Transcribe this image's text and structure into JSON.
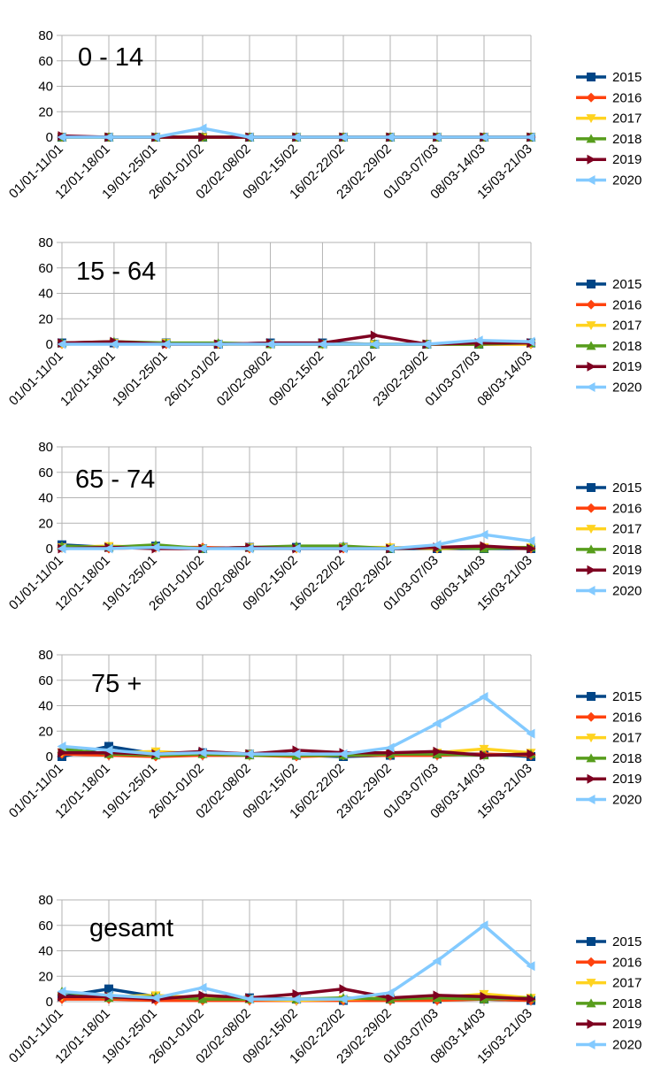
{
  "colors": {
    "2015": "#004586",
    "2016": "#ff420e",
    "2017": "#ffd320",
    "2018": "#579d1c",
    "2019": "#7e0021",
    "2020": "#83caff"
  },
  "chart_data": [
    {
      "type": "line",
      "title": "0 - 14",
      "ylim": [
        0,
        80
      ],
      "yticks": [
        0,
        20,
        40,
        60,
        80
      ],
      "grid": true,
      "legend_position": "right",
      "categories": [
        "01/01-11/01",
        "12/01-18/01",
        "19/01-25/01",
        "26/01-01/02",
        "02/02-08/02",
        "09/02-15/02",
        "16/02-22/02",
        "23/02-29/02",
        "01/03-07/03",
        "08/03-14/03",
        "15/03-21/03"
      ],
      "series": [
        {
          "name": "2015",
          "marker": "square",
          "values": [
            0,
            0,
            0,
            0,
            0,
            0,
            0,
            0,
            0,
            0,
            0
          ]
        },
        {
          "name": "2016",
          "marker": "diamond",
          "values": [
            0,
            0,
            0,
            0,
            0,
            0,
            0,
            0,
            0,
            0,
            0
          ]
        },
        {
          "name": "2017",
          "marker": "triangle-down",
          "values": [
            0,
            0,
            0,
            0,
            0,
            0,
            0,
            0,
            0,
            0,
            0
          ]
        },
        {
          "name": "2018",
          "marker": "triangle-up",
          "values": [
            0,
            0,
            0,
            0,
            0,
            0,
            0,
            0,
            0,
            0,
            0
          ]
        },
        {
          "name": "2019",
          "marker": "triangle-right",
          "values": [
            1,
            0,
            0,
            0,
            0,
            0,
            0,
            0,
            0,
            0,
            0
          ]
        },
        {
          "name": "2020",
          "marker": "triangle-left",
          "values": [
            0,
            0,
            0,
            7,
            0,
            0,
            0,
            0,
            0,
            0,
            0
          ]
        }
      ]
    },
    {
      "type": "line",
      "title": "15 - 64",
      "ylim": [
        0,
        80
      ],
      "yticks": [
        0,
        20,
        40,
        60,
        80
      ],
      "grid": true,
      "legend_position": "right",
      "categories": [
        "01/01-11/01",
        "12/01-18/01",
        "19/01-25/01",
        "26/01-01/02",
        "02/02-08/02",
        "09/02-15/02",
        "16/02-22/02",
        "23/02-29/02",
        "01/03-07/03",
        "08/03-14/03"
      ],
      "series": [
        {
          "name": "2015",
          "marker": "square",
          "values": [
            1,
            1,
            1,
            0,
            1,
            1,
            0,
            0,
            0,
            1
          ]
        },
        {
          "name": "2016",
          "marker": "diamond",
          "values": [
            0,
            1,
            0,
            0,
            0,
            0,
            0,
            0,
            0,
            0
          ]
        },
        {
          "name": "2017",
          "marker": "triangle-down",
          "values": [
            0,
            1,
            1,
            0,
            0,
            0,
            0,
            0,
            0,
            0
          ]
        },
        {
          "name": "2018",
          "marker": "triangle-up",
          "values": [
            1,
            2,
            1,
            1,
            0,
            0,
            0,
            0,
            0,
            1
          ]
        },
        {
          "name": "2019",
          "marker": "triangle-right",
          "values": [
            1,
            2,
            0,
            0,
            1,
            1,
            7,
            0,
            1,
            1
          ]
        },
        {
          "name": "2020",
          "marker": "triangle-left",
          "values": [
            0,
            0,
            0,
            0,
            0,
            0,
            0,
            0,
            3,
            2
          ]
        }
      ]
    },
    {
      "type": "line",
      "title": "65 - 74",
      "ylim": [
        0,
        80
      ],
      "yticks": [
        0,
        20,
        40,
        60,
        80
      ],
      "grid": true,
      "legend_position": "right",
      "categories": [
        "01/01-11/01",
        "12/01-18/01",
        "19/01-25/01",
        "26/01-01/02",
        "02/02-08/02",
        "09/02-15/02",
        "16/02-22/02",
        "23/02-29/02",
        "01/03-07/03",
        "08/03-14/03",
        "15/03-21/03"
      ],
      "series": [
        {
          "name": "2015",
          "marker": "square",
          "values": [
            3,
            1,
            2,
            0,
            1,
            1,
            1,
            0,
            0,
            0,
            0
          ]
        },
        {
          "name": "2016",
          "marker": "diamond",
          "values": [
            1,
            0,
            1,
            1,
            0,
            0,
            0,
            1,
            0,
            1,
            0
          ]
        },
        {
          "name": "2017",
          "marker": "triangle-down",
          "values": [
            1,
            2,
            1,
            0,
            1,
            0,
            1,
            1,
            0,
            1,
            1
          ]
        },
        {
          "name": "2018",
          "marker": "triangle-up",
          "values": [
            2,
            1,
            3,
            0,
            1,
            2,
            2,
            0,
            1,
            0,
            1
          ]
        },
        {
          "name": "2019",
          "marker": "triangle-right",
          "values": [
            0,
            1,
            0,
            0,
            1,
            0,
            0,
            0,
            1,
            2,
            0
          ]
        },
        {
          "name": "2020",
          "marker": "triangle-left",
          "values": [
            0,
            0,
            1,
            0,
            0,
            0,
            0,
            0,
            3,
            11,
            6
          ]
        }
      ]
    },
    {
      "type": "line",
      "title": "75 +",
      "ylim": [
        0,
        80
      ],
      "yticks": [
        0,
        20,
        40,
        60,
        80
      ],
      "grid": true,
      "legend_position": "right",
      "categories": [
        "01/01-11/01",
        "12/01-18/01",
        "19/01-25/01",
        "26/01-01/02",
        "02/02-08/02",
        "09/02-15/02",
        "16/02-22/02",
        "23/02-29/02",
        "01/03-07/03",
        "08/03-14/03",
        "15/03-21/03"
      ],
      "series": [
        {
          "name": "2015",
          "marker": "square",
          "values": [
            0,
            8,
            2,
            3,
            2,
            1,
            0,
            1,
            2,
            2,
            0
          ]
        },
        {
          "name": "2016",
          "marker": "diamond",
          "values": [
            2,
            1,
            0,
            1,
            1,
            0,
            1,
            1,
            1,
            2,
            1
          ]
        },
        {
          "name": "2017",
          "marker": "triangle-down",
          "values": [
            3,
            3,
            4,
            2,
            2,
            1,
            1,
            2,
            3,
            6,
            3
          ]
        },
        {
          "name": "2018",
          "marker": "triangle-up",
          "values": [
            6,
            2,
            1,
            2,
            1,
            1,
            1,
            2,
            2,
            1,
            2
          ]
        },
        {
          "name": "2019",
          "marker": "triangle-right",
          "values": [
            3,
            3,
            2,
            4,
            2,
            5,
            3,
            3,
            4,
            1,
            2
          ]
        },
        {
          "name": "2020",
          "marker": "triangle-left",
          "values": [
            8,
            5,
            2,
            3,
            2,
            2,
            2,
            7,
            26,
            47,
            18
          ]
        }
      ]
    },
    {
      "type": "line",
      "title": "gesamt",
      "ylim": [
        0,
        80
      ],
      "yticks": [
        0,
        20,
        40,
        60,
        80
      ],
      "grid": true,
      "legend_position": "right",
      "categories": [
        "01/01-11/01",
        "12/01-18/01",
        "19/01-25/01",
        "26/01-01/02",
        "02/02-08/02",
        "09/02-15/02",
        "16/02-22/02",
        "23/02-29/02",
        "01/03-07/03",
        "08/03-14/03",
        "15/03-21/03"
      ],
      "series": [
        {
          "name": "2015",
          "marker": "square",
          "values": [
            4,
            10,
            4,
            3,
            3,
            2,
            1,
            2,
            2,
            2,
            1
          ]
        },
        {
          "name": "2016",
          "marker": "diamond",
          "values": [
            2,
            2,
            1,
            1,
            1,
            1,
            1,
            1,
            1,
            2,
            1
          ]
        },
        {
          "name": "2017",
          "marker": "triangle-down",
          "values": [
            4,
            4,
            5,
            3,
            2,
            1,
            2,
            3,
            3,
            6,
            3
          ]
        },
        {
          "name": "2018",
          "marker": "triangle-up",
          "values": [
            8,
            3,
            4,
            2,
            2,
            2,
            3,
            2,
            3,
            2,
            3
          ]
        },
        {
          "name": "2019",
          "marker": "triangle-right",
          "values": [
            4,
            4,
            2,
            5,
            3,
            6,
            10,
            3,
            5,
            4,
            2
          ]
        },
        {
          "name": "2020",
          "marker": "triangle-left",
          "values": [
            8,
            5,
            3,
            11,
            2,
            2,
            2,
            7,
            32,
            60,
            28
          ]
        }
      ]
    }
  ]
}
